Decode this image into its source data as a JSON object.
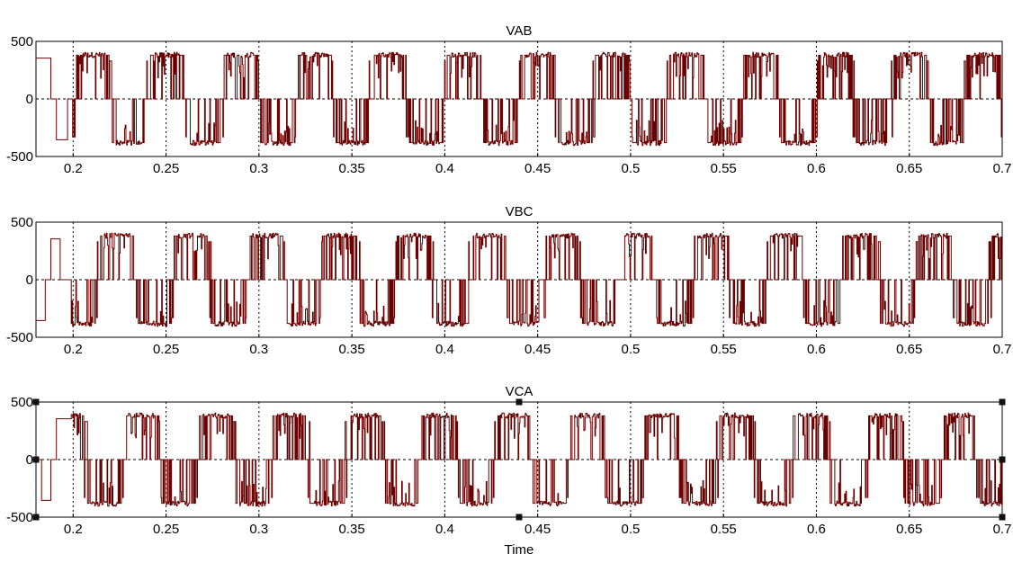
{
  "colors": {
    "signal": "#6b0000"
  },
  "chart_data": [
    {
      "type": "line",
      "title": "VAB",
      "xlabel": "",
      "ylabel": "",
      "xlim": [
        0.18,
        0.7
      ],
      "ylim": [
        -500,
        500
      ],
      "xticks": [
        "0.2",
        "0.25",
        "0.3",
        "0.35",
        "0.4",
        "0.45",
        "0.5",
        "0.55",
        "0.6",
        "0.65",
        "0.7"
      ],
      "yticks": [
        "500",
        "0",
        "-500"
      ],
      "grid": true,
      "series": [
        {
          "values_description": "square-wave startup then PWM multilevel line voltage",
          "startup_steps": [
            [
              0.18,
              355
            ],
            [
              0.188,
              0
            ],
            [
              0.191,
              -355
            ],
            [
              0.197,
              0
            ]
          ],
          "fundamental_hz": 25,
          "amplitude_levels": [
            -400,
            -355,
            0,
            355,
            400
          ],
          "phase_deg": 0
        }
      ],
      "selected": false
    },
    {
      "type": "line",
      "title": "VBC",
      "xlabel": "",
      "ylabel": "",
      "xlim": [
        0.18,
        0.7
      ],
      "ylim": [
        -500,
        500
      ],
      "xticks": [
        "0.2",
        "0.25",
        "0.3",
        "0.35",
        "0.4",
        "0.45",
        "0.5",
        "0.55",
        "0.6",
        "0.65",
        "0.7"
      ],
      "yticks": [
        "500",
        "0",
        "-500"
      ],
      "grid": true,
      "series": [
        {
          "values_description": "square-wave startup then PWM multilevel line voltage",
          "startup_steps": [
            [
              0.18,
              -355
            ],
            [
              0.185,
              0
            ],
            [
              0.188,
              355
            ],
            [
              0.193,
              0
            ]
          ],
          "fundamental_hz": 25,
          "amplitude_levels": [
            -400,
            -355,
            0,
            355,
            400
          ],
          "phase_deg": -120
        }
      ],
      "selected": false
    },
    {
      "type": "line",
      "title": "VCA",
      "xlabel": "Time",
      "ylabel": "",
      "xlim": [
        0.18,
        0.7
      ],
      "ylim": [
        -500,
        500
      ],
      "xticks": [
        "0.2",
        "0.25",
        "0.3",
        "0.35",
        "0.4",
        "0.45",
        "0.5",
        "0.55",
        "0.6",
        "0.65",
        "0.7"
      ],
      "yticks": [
        "500",
        "0",
        "-500"
      ],
      "grid": true,
      "series": [
        {
          "values_description": "square-wave startup then PWM multilevel line voltage",
          "startup_steps": [
            [
              0.18,
              0
            ],
            [
              0.183,
              -355
            ],
            [
              0.188,
              0
            ],
            [
              0.191,
              355
            ]
          ],
          "fundamental_hz": 25,
          "amplitude_levels": [
            -400,
            -355,
            0,
            355,
            400
          ],
          "phase_deg": 120
        }
      ],
      "selected": true
    }
  ]
}
